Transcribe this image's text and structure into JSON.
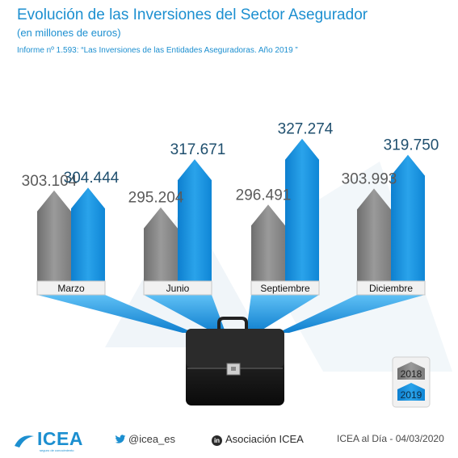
{
  "title": "Evolución de las Inversiones del Sector Asegurador",
  "subtitle": "(en millones de euros)",
  "source": "Informe nº 1.593: “Las Inversiones de las Entidades Aseguradoras. Año 2019 ”",
  "colors": {
    "accent": "#1c8fd0",
    "y2018": "#8c8c8c",
    "y2019": "#1a8fd6"
  },
  "chart_data": {
    "type": "bar",
    "categories": [
      "Marzo",
      "Junio",
      "Septiembre",
      "Diciembre"
    ],
    "series": [
      {
        "name": "2018",
        "values": [
          303104,
          295204,
          296491,
          303993
        ],
        "labels": [
          "303.104",
          "295.204",
          "296.491",
          "303.993"
        ]
      },
      {
        "name": "2019",
        "values": [
          304444,
          317671,
          327274,
          319750
        ],
        "labels": [
          "304.444",
          "317.671",
          "327.274",
          "319.750"
        ]
      }
    ],
    "legend_position": "bottom-right"
  },
  "footer": {
    "logo": "ICEA",
    "logo_tagline": "seguro de conocimiento",
    "twitter": "@icea_es",
    "linkedin": "Asociación ICEA",
    "date": "ICEA al Día - 04/03/2020"
  }
}
